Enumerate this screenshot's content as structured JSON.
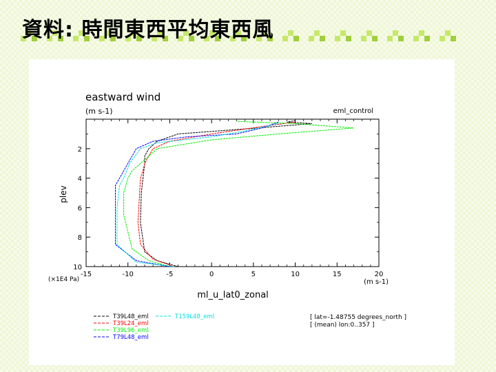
{
  "slide": {
    "title": "資料: 時間東西平均東西風"
  },
  "colors": {
    "title_deco": "#c6e86a",
    "title_deco_dark": "#9fcf3a"
  },
  "chart_data": {
    "type": "line",
    "title": "eastward wind",
    "units": "(m s-1)",
    "experiment": "eml_control",
    "ylabel": "plev",
    "y_scale_label": "(×1E4 Pa)",
    "xlabel": "ml_u_lat0_zonal",
    "x_units": "(m s-1)",
    "xlim": [
      -15,
      20
    ],
    "ylim": [
      10,
      0
    ],
    "xticks": [
      -15,
      -10,
      -5,
      0,
      5,
      10,
      15,
      20
    ],
    "yticks": [
      2,
      4,
      6,
      8,
      10
    ],
    "meta": [
      "[ lat=-1.48755 degrees_north ]",
      "[ (mean) lon:0..357 ]"
    ],
    "series": [
      {
        "name": "T39L48_eml",
        "color": "#000000",
        "x": [
          -4,
          -6.5,
          -8,
          -8.5,
          -8.4,
          -8.2,
          -8,
          -8,
          -7.5,
          -6.5,
          -4,
          5.5,
          12,
          9,
          10
        ],
        "y": [
          10,
          9.6,
          9,
          7,
          5,
          4,
          3,
          2.5,
          2,
          1.5,
          1,
          0.6,
          0.3,
          0.2,
          0.1
        ]
      },
      {
        "name": "T39L24_eml",
        "color": "#ff0000",
        "x": [
          -4.5,
          -7,
          -8.5,
          -8.8,
          -8.6,
          -8.5,
          -8.2,
          -8,
          -7,
          -5,
          0,
          6,
          10
        ],
        "y": [
          10,
          9.5,
          8.5,
          7,
          5,
          4,
          3.5,
          3,
          2,
          1.5,
          1,
          0.5,
          0.2
        ]
      },
      {
        "name": "T39L96_eml",
        "color": "#00ee00",
        "x": [
          -5,
          -7.5,
          -9.5,
          -10.5,
          -10.5,
          -10,
          -9.5,
          -8.5,
          -6.5,
          0,
          8,
          17,
          10,
          3
        ],
        "y": [
          10,
          9.6,
          8.8,
          6.5,
          5,
          4,
          3.5,
          3,
          2,
          1.4,
          1,
          0.6,
          0.3,
          0.15
        ]
      },
      {
        "name": "T79L48_eml",
        "color": "#0000ff",
        "x": [
          -5,
          -9,
          -11.5,
          -11.5,
          -11.5,
          -11,
          -10,
          -9,
          -7,
          -3,
          3,
          6,
          8
        ],
        "y": [
          10,
          9.6,
          8.5,
          6,
          4.5,
          4,
          3,
          2,
          1.5,
          1.2,
          1,
          0.6,
          0.2
        ]
      },
      {
        "name": "T159L48_eml",
        "color": "#00e0e0",
        "x": [
          -4.5,
          -9,
          -11.3,
          -11.3,
          -11,
          -10.5,
          -9.8,
          -8.5,
          -6.5,
          0,
          4,
          8
        ],
        "y": [
          10,
          9.7,
          8.5,
          6,
          4.5,
          4,
          3,
          2,
          1.6,
          1.2,
          0.8,
          0.3
        ]
      }
    ]
  }
}
